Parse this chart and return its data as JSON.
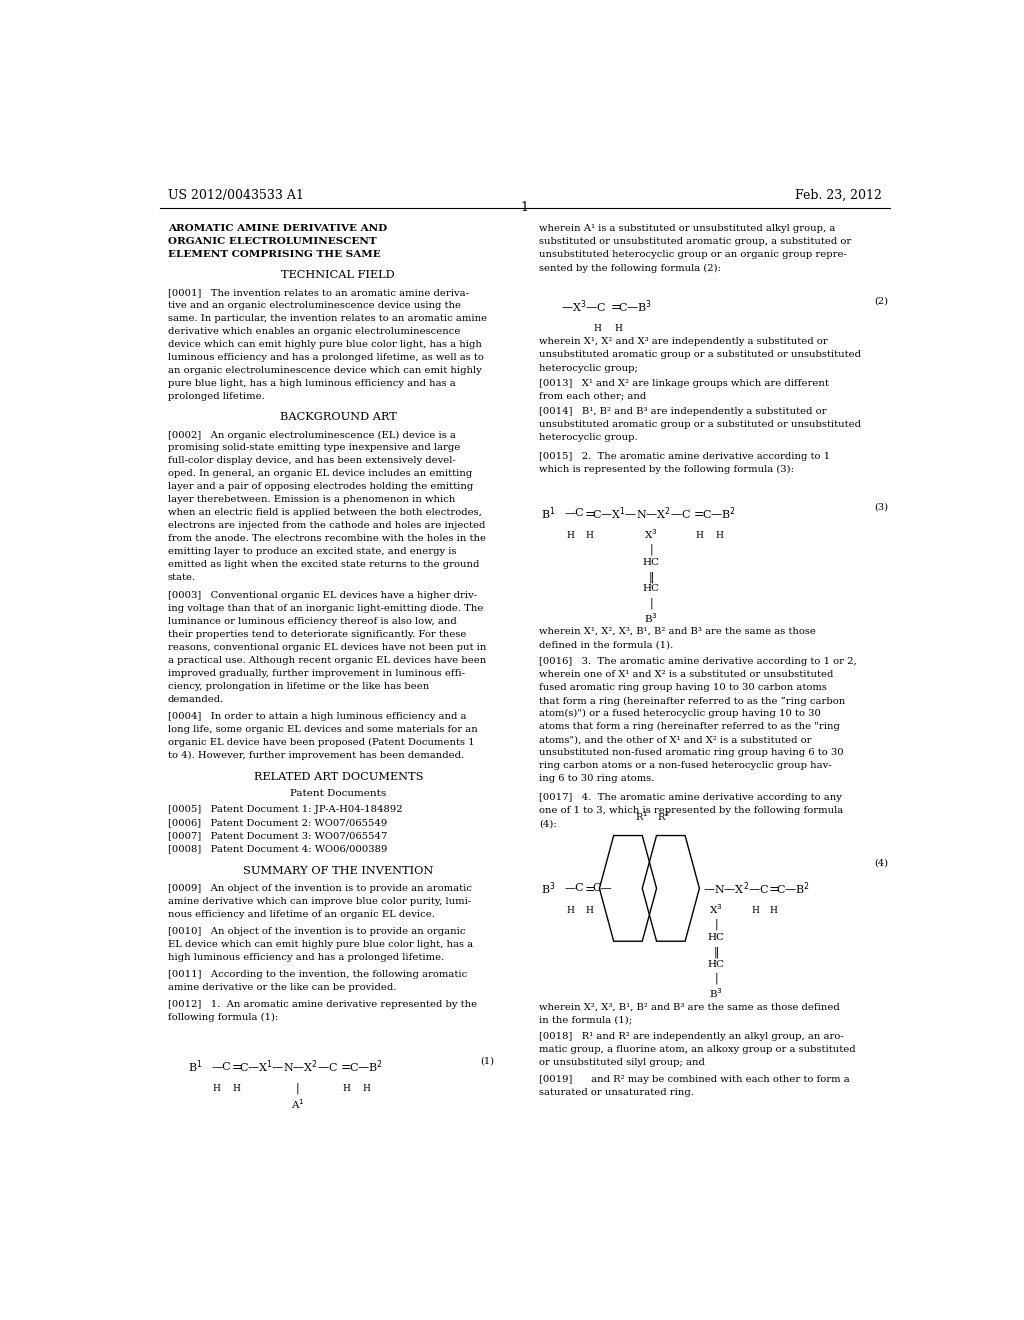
{
  "background_color": "#ffffff",
  "header_left": "US 2012/0043533 A1",
  "header_right": "Feb. 23, 2012",
  "page_number": "1"
}
